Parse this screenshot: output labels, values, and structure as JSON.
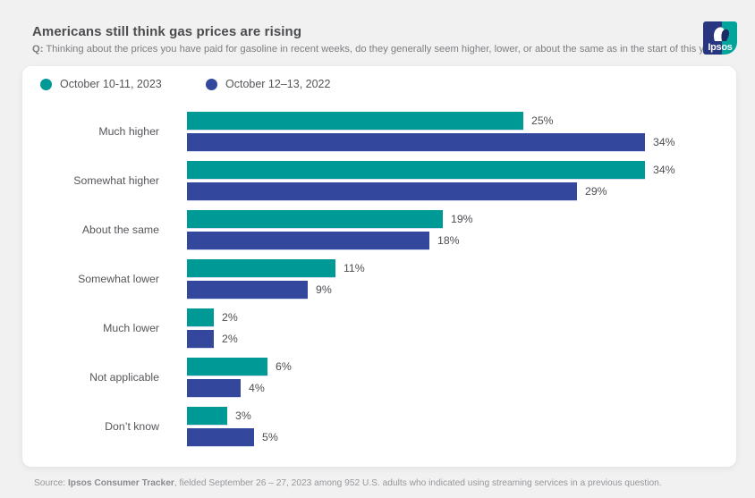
{
  "header": {
    "title": "Americans still think gas prices are rising",
    "question_prefix": "Q:",
    "question": " Thinking about the prices you have paid for gasoline in recent weeks, do they generally seem higher, lower, or about the same as in the start of this year?"
  },
  "logo": {
    "text": "Ipsos",
    "navy": "#28357f",
    "teal": "#00a49b"
  },
  "legend": [
    {
      "label": "October 10-11, 2023",
      "color": "#009a96"
    },
    {
      "label": "October 12–13, 2022",
      "color": "#33489d"
    }
  ],
  "chart_data": {
    "type": "bar",
    "orientation": "horizontal",
    "title": "Americans still think gas prices are rising",
    "categories": [
      "Much higher",
      "Somewhat higher",
      "About the same",
      "Somewhat lower",
      "Much lower",
      "Not applicable",
      "Don’t know"
    ],
    "series": [
      {
        "name": "October 10-11, 2023",
        "color": "#009a96",
        "values": [
          25,
          34,
          19,
          11,
          2,
          6,
          3
        ]
      },
      {
        "name": "October 12–13, 2022",
        "color": "#33489d",
        "values": [
          34,
          29,
          18,
          9,
          2,
          4,
          5
        ]
      }
    ],
    "value_suffix": "%",
    "xlim": [
      0,
      40
    ],
    "grid": false,
    "axis_labels_shown": false,
    "data_labels": true,
    "legend_position": "top-left"
  },
  "footer": {
    "prefix": "Source: ",
    "bold": "Ipsos Consumer Tracker",
    "rest": ", fielded September 26 – 27, 2023 among 952 U.S. adults who indicated using streaming services in a previous question."
  }
}
